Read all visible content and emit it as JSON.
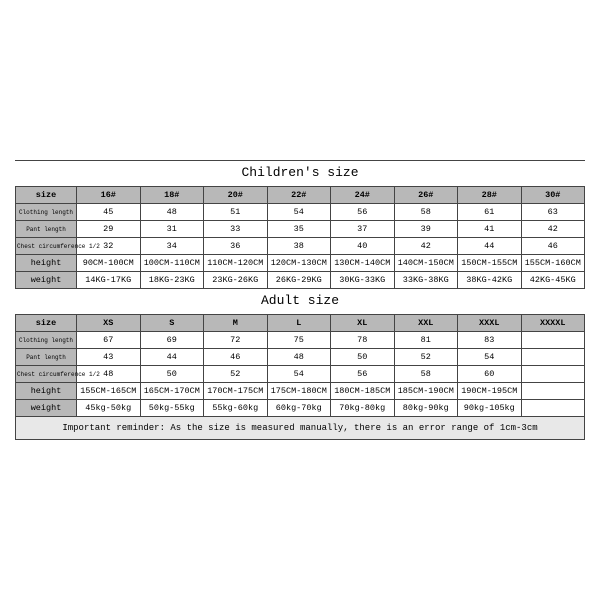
{
  "children": {
    "title": "Children's size",
    "row_labels": [
      "size",
      "Clothing length",
      "Pant length",
      "Chest circumference 1/2",
      "height",
      "weight"
    ],
    "columns": [
      "16#",
      "18#",
      "20#",
      "22#",
      "24#",
      "26#",
      "28#",
      "30#"
    ],
    "rows": {
      "clothing_length": [
        "45",
        "48",
        "51",
        "54",
        "56",
        "58",
        "61",
        "63"
      ],
      "pant_length": [
        "29",
        "31",
        "33",
        "35",
        "37",
        "39",
        "41",
        "42"
      ],
      "chest": [
        "32",
        "34",
        "36",
        "38",
        "40",
        "42",
        "44",
        "46"
      ],
      "height": [
        "90CM-100CM",
        "100CM-110CM",
        "110CM-120CM",
        "120CM-130CM",
        "130CM-140CM",
        "140CM-150CM",
        "150CM-155CM",
        "155CM-160CM"
      ],
      "weight": [
        "14KG-17KG",
        "18KG-23KG",
        "23KG-26KG",
        "26KG-29KG",
        "30KG-33KG",
        "33KG-38KG",
        "38KG-42KG",
        "42KG-45KG"
      ]
    }
  },
  "adult": {
    "title": "Adult size",
    "row_labels": [
      "size",
      "Clothing length",
      "Pant length",
      "Chest circumference 1/2",
      "height",
      "weight"
    ],
    "columns": [
      "XS",
      "S",
      "M",
      "L",
      "XL",
      "XXL",
      "XXXL",
      "XXXXL"
    ],
    "rows": {
      "clothing_length": [
        "67",
        "69",
        "72",
        "75",
        "78",
        "81",
        "83",
        ""
      ],
      "pant_length": [
        "43",
        "44",
        "46",
        "48",
        "50",
        "52",
        "54",
        ""
      ],
      "chest": [
        "48",
        "50",
        "52",
        "54",
        "56",
        "58",
        "60",
        ""
      ],
      "height": [
        "155CM-165CM",
        "165CM-170CM",
        "170CM-175CM",
        "175CM-180CM",
        "180CM-185CM",
        "185CM-190CM",
        "190CM-195CM",
        ""
      ],
      "weight": [
        "45kg-50kg",
        "50kg-55kg",
        "55kg-60kg",
        "60kg-70kg",
        "70kg-80kg",
        "80kg-90kg",
        "90kg-105kg",
        ""
      ]
    }
  },
  "note": "Important reminder: As the size is measured manually, there is an error range of 1cm-3cm",
  "style": {
    "header_bg": "#b8b8b8",
    "note_bg": "#e8e8e8",
    "border_color": "#444444",
    "font_family": "Courier New",
    "title_fontsize": 13,
    "cell_fontsize": 8.5,
    "tiny_fontsize": 6,
    "note_fontsize": 9
  }
}
